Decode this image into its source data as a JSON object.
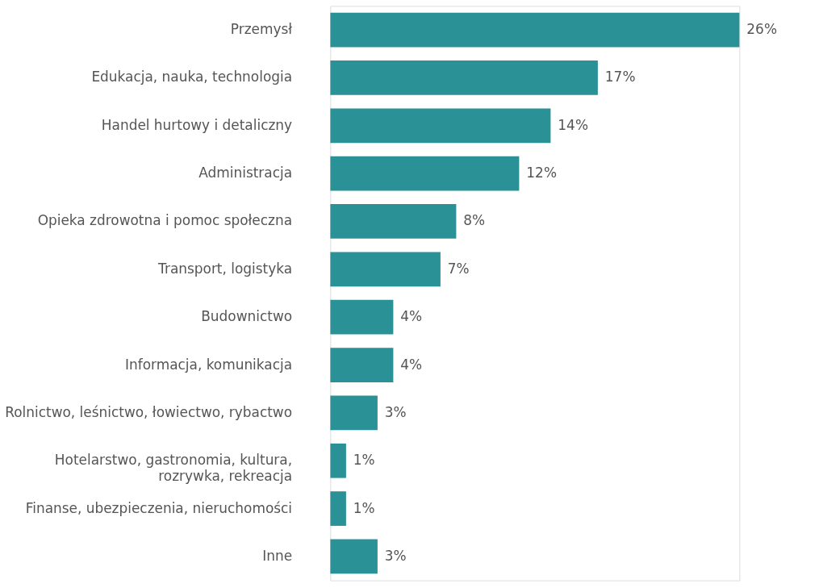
{
  "chart_data": {
    "type": "bar",
    "orientation": "horizontal",
    "categories": [
      "Przemysł",
      "Edukacja, nauka, technologia",
      "Handel hurtowy i detaliczny",
      "Administracja",
      "Opieka zdrowotna i pomoc społeczna",
      "Transport, logistyka",
      "Budownictwo",
      "Informacja, komunikacja",
      "Rolnictwo, leśnictwo, łowiectwo, rybactwo",
      "Hotelarstwo, gastronomia, kultura,\nrozrywka, rekreacja",
      "Finanse, ubezpieczenia, nieruchomości",
      "Inne"
    ],
    "values": [
      26,
      17,
      14,
      12,
      8,
      7,
      4,
      4,
      3,
      1,
      1,
      3
    ],
    "value_labels": [
      "26%",
      "17%",
      "14%",
      "12%",
      "8%",
      "7%",
      "4%",
      "4%",
      "3%",
      "1%",
      "1%",
      "3%"
    ],
    "color": "#2a9196",
    "grid": false
  }
}
